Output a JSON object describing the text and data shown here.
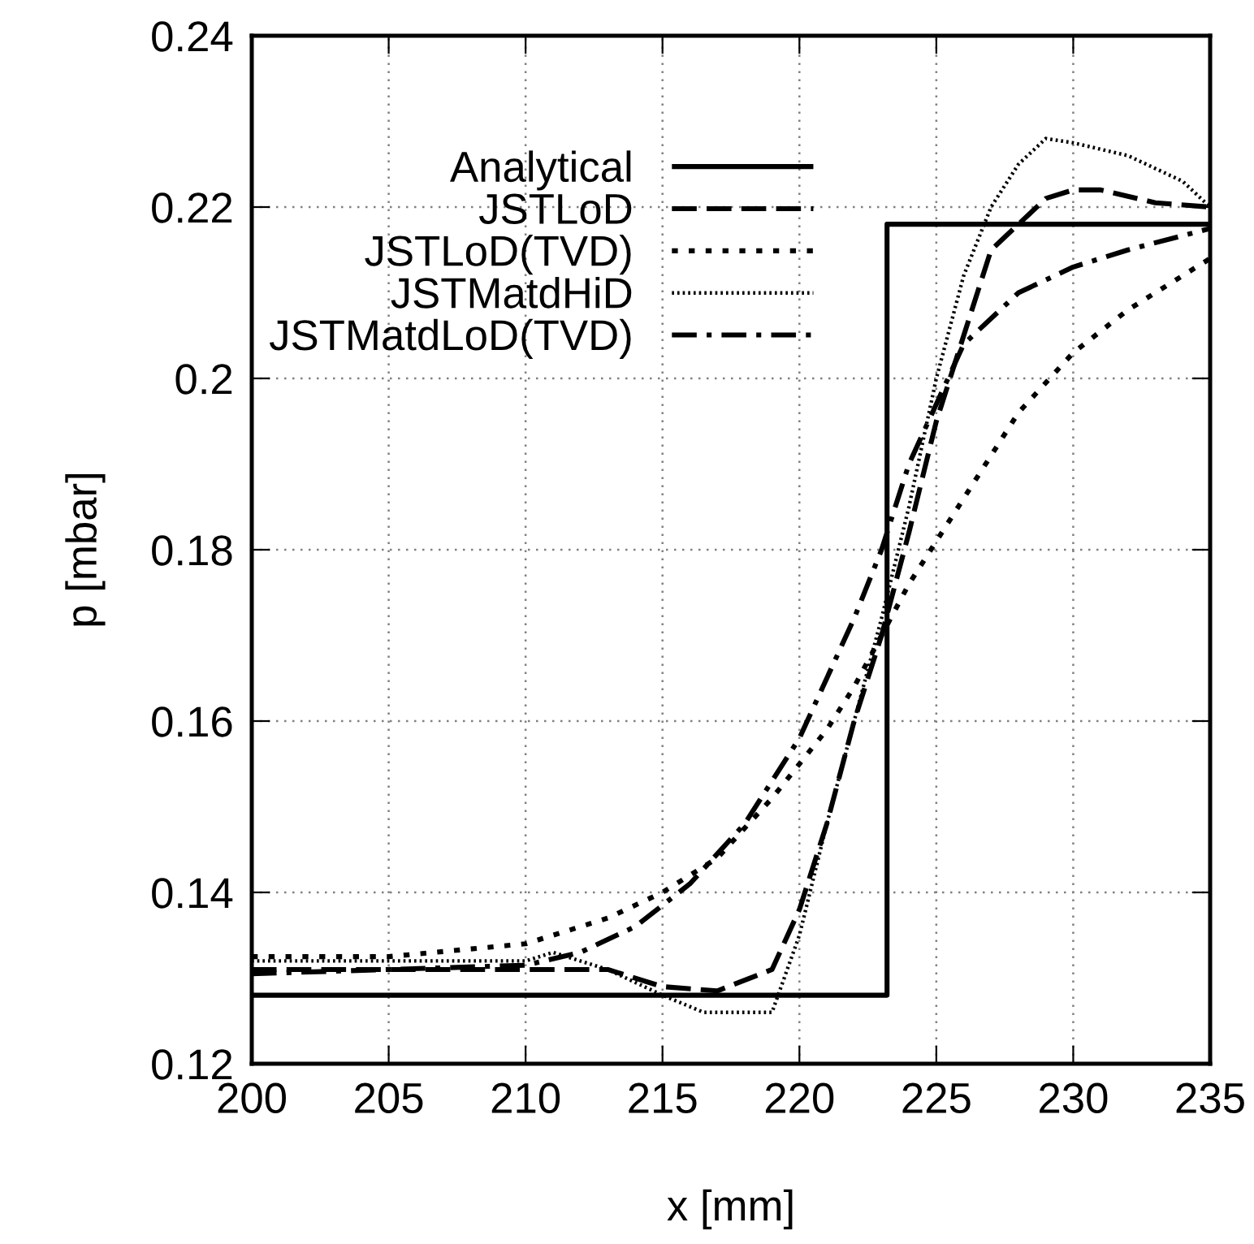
{
  "chart_data": {
    "type": "line",
    "xlabel": "x [mm]",
    "ylabel": "p [mbar]",
    "xlim": [
      200,
      235
    ],
    "ylim": [
      0.12,
      0.24
    ],
    "xticks": [
      200,
      205,
      210,
      215,
      220,
      225,
      230,
      235
    ],
    "yticks": [
      0.12,
      0.14,
      0.16,
      0.18,
      0.2,
      0.22,
      0.24
    ],
    "grid": true,
    "legend": "top left",
    "marker": "none",
    "series": [
      {
        "name": "Analytical",
        "color": "#000000",
        "line_style": "solid",
        "x": [
          200,
          223.2,
          223.2,
          235
        ],
        "values": [
          0.128,
          0.128,
          0.218,
          0.218
        ]
      },
      {
        "name": "JSTLoD",
        "color": "#000000",
        "line_style": "dashed",
        "x": [
          200,
          210,
          213,
          215,
          217,
          219,
          220,
          221,
          222,
          223,
          224,
          225,
          226,
          227,
          228,
          229,
          230,
          231,
          233,
          235
        ],
        "values": [
          0.131,
          0.131,
          0.131,
          0.129,
          0.1285,
          0.131,
          0.138,
          0.148,
          0.16,
          0.17,
          0.182,
          0.195,
          0.205,
          0.215,
          0.218,
          0.221,
          0.222,
          0.222,
          0.2205,
          0.22
        ]
      },
      {
        "name": "JSTLoD(TVD)",
        "color": "#000000",
        "line_style": "dotted",
        "x": [
          200,
          205,
          210,
          213,
          215,
          217,
          219,
          221,
          222,
          223,
          224,
          225,
          226,
          227,
          228,
          230,
          232,
          234,
          235
        ],
        "values": [
          0.1325,
          0.1325,
          0.134,
          0.137,
          0.14,
          0.144,
          0.151,
          0.159,
          0.164,
          0.17,
          0.176,
          0.181,
          0.186,
          0.191,
          0.196,
          0.203,
          0.208,
          0.212,
          0.214
        ]
      },
      {
        "name": "JSTMatdHiD",
        "color": "#000000",
        "line_style": "fine dotted",
        "x": [
          200,
          210,
          211,
          213,
          215,
          216.5,
          219,
          220,
          221,
          222,
          223,
          224,
          225,
          226,
          227,
          228,
          229,
          230,
          232,
          234,
          235
        ],
        "values": [
          0.132,
          0.132,
          0.133,
          0.131,
          0.128,
          0.126,
          0.126,
          0.135,
          0.148,
          0.16,
          0.172,
          0.185,
          0.2,
          0.212,
          0.22,
          0.225,
          0.228,
          0.2275,
          0.226,
          0.223,
          0.22
        ]
      },
      {
        "name": "JSTMatdLoD(TVD)",
        "color": "#000000",
        "line_style": "dashdot",
        "x": [
          200,
          210,
          212,
          214,
          216,
          218,
          220,
          222,
          223,
          224,
          225,
          226,
          228,
          230,
          232,
          235
        ],
        "values": [
          0.1305,
          0.1315,
          0.133,
          0.136,
          0.141,
          0.148,
          0.158,
          0.172,
          0.18,
          0.19,
          0.197,
          0.204,
          0.21,
          0.213,
          0.215,
          0.2175
        ]
      }
    ]
  }
}
